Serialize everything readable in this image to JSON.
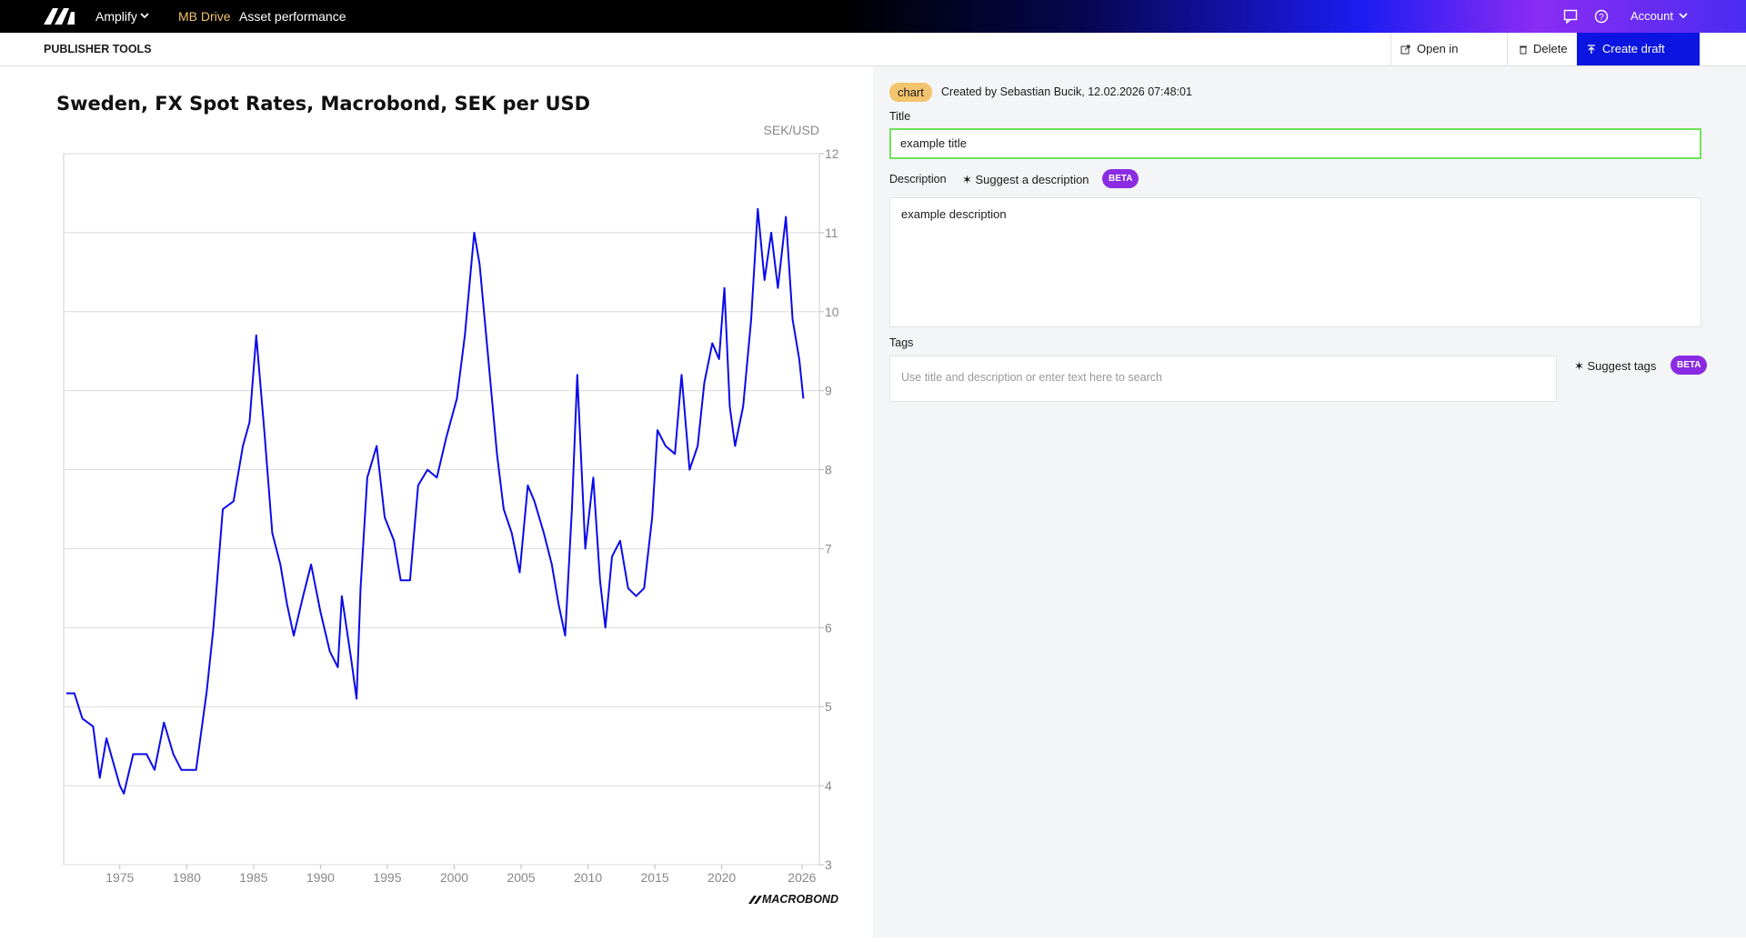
{
  "nav": {
    "menu": "Amplify",
    "links": [
      "MB Drive",
      "Asset performance"
    ],
    "account": "Account"
  },
  "toolbar": {
    "title": "PUBLISHER TOOLS",
    "buttons": [
      "Open in Analysis",
      "Delete",
      "Create draft Asset"
    ]
  },
  "form": {
    "type_tag": "chart",
    "created": "Created by Sebastian Bucik, 12.02.2026 07:48:01",
    "title_label": "Title",
    "title_value": "example title",
    "description_label": "Description",
    "suggest_description": "Suggest a description",
    "description_badge": "BETA",
    "description_value": "example description",
    "tags_label": "Tags",
    "tags_placeholder": "Use title and description or enter text here to search",
    "suggest_tags": "Suggest tags",
    "tags_badge": "BETA"
  },
  "chart_data": {
    "type": "line",
    "title": "Sweden, FX Spot Rates, Macrobond, SEK per USD",
    "y_label": "SEK/USD",
    "logo_text": "MACROBOND",
    "color": "#0a0aeb",
    "grid": true,
    "x": [
      1971.0,
      1971.6,
      1972.2,
      1973.0,
      1973.5,
      1974.0,
      1974.5,
      1975.0,
      1975.3,
      1976.0,
      1977.0,
      1977.6,
      1978.3,
      1979.0,
      1979.6,
      1980.0,
      1980.7,
      1981.5,
      1982.0,
      1982.7,
      1983.5,
      1984.2,
      1984.7,
      1985.2,
      1985.8,
      1986.4,
      1987.0,
      1987.5,
      1988.0,
      1988.7,
      1989.3,
      1990.0,
      1990.7,
      1991.3,
      1991.6,
      1992.3,
      1992.7,
      1993.0,
      1993.5,
      1994.2,
      1994.8,
      1995.5,
      1996.0,
      1996.7,
      1997.3,
      1998.0,
      1998.7,
      1999.4,
      2000.2,
      2000.8,
      2001.5,
      2001.9,
      2002.5,
      2003.2,
      2003.7,
      2004.3,
      2004.9,
      2005.5,
      2006.0,
      2006.7,
      2007.3,
      2007.8,
      2008.3,
      2008.8,
      2009.2,
      2009.8,
      2010.4,
      2010.9,
      2011.3,
      2011.8,
      2012.4,
      2013.0,
      2013.6,
      2014.2,
      2014.8,
      2015.2,
      2015.8,
      2016.5,
      2017.0,
      2017.6,
      2018.2,
      2018.7,
      2019.3,
      2019.8,
      2020.2,
      2020.6,
      2021.0,
      2021.6,
      2022.2,
      2022.7,
      2023.2,
      2023.7,
      2024.2,
      2024.8,
      2025.3,
      2025.8,
      2026.1
    ],
    "values": [
      5.17,
      5.17,
      4.85,
      4.75,
      4.1,
      4.6,
      4.3,
      4.0,
      3.9,
      4.4,
      4.4,
      4.2,
      4.8,
      4.4,
      4.2,
      4.2,
      4.2,
      5.2,
      6.0,
      7.5,
      7.6,
      8.3,
      8.6,
      9.7,
      8.5,
      7.2,
      6.8,
      6.3,
      5.9,
      6.4,
      6.8,
      6.2,
      5.7,
      5.5,
      6.4,
      5.6,
      5.1,
      6.5,
      7.9,
      8.3,
      7.4,
      7.1,
      6.6,
      6.6,
      7.8,
      8.0,
      7.9,
      8.4,
      8.9,
      9.7,
      11.0,
      10.6,
      9.5,
      8.2,
      7.5,
      7.2,
      6.7,
      7.8,
      7.6,
      7.2,
      6.8,
      6.3,
      5.9,
      7.5,
      9.2,
      7.0,
      7.9,
      6.6,
      6.0,
      6.9,
      7.1,
      6.5,
      6.4,
      6.5,
      7.4,
      8.5,
      8.3,
      8.2,
      9.2,
      8.0,
      8.3,
      9.1,
      9.6,
      9.4,
      10.3,
      8.8,
      8.3,
      8.8,
      9.9,
      11.3,
      10.4,
      11.0,
      10.3,
      11.2,
      9.9,
      9.4,
      8.9
    ],
    "xlim": [
      1970.8,
      2027.3
    ],
    "ylim": [
      3,
      12
    ],
    "xticks": [
      1975,
      1980,
      1985,
      1990,
      1995,
      2000,
      2005,
      2010,
      2015,
      2020,
      2026
    ],
    "yticks": [
      3,
      4,
      5,
      6,
      7,
      8,
      9,
      10,
      11,
      12
    ]
  }
}
